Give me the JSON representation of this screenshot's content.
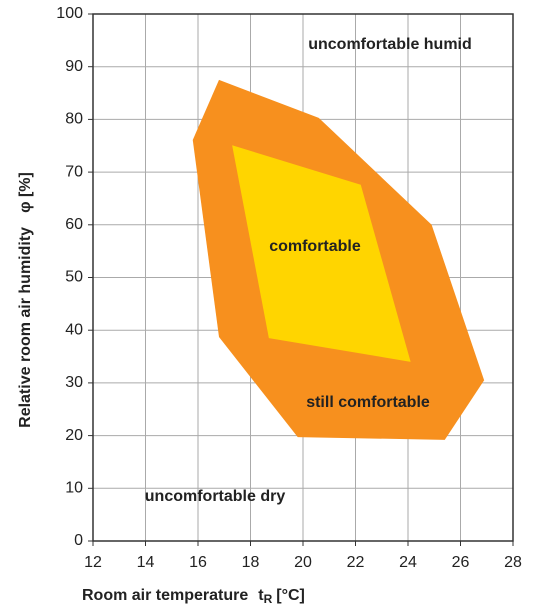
{
  "chart_data": {
    "type": "polygon",
    "xlim": [
      12,
      28
    ],
    "xticks": [
      12,
      14,
      16,
      18,
      20,
      22,
      24,
      26,
      28
    ],
    "ylim": [
      0,
      100
    ],
    "yticks": [
      0,
      10,
      20,
      30,
      40,
      50,
      60,
      70,
      80,
      90,
      100
    ],
    "grid": true,
    "xlabel": {
      "text": "Room air temperature",
      "symbol": "t",
      "subscript": "R",
      "unit": "[°C]"
    },
    "ylabel": {
      "text": "Relative room air humidity",
      "symbol": "φ [%]"
    },
    "series": [
      {
        "name": "still comfortable",
        "color": "#f7901e",
        "x": [
          16.8,
          20.6,
          24.9,
          26.9,
          25.4,
          19.8,
          16.8,
          15.8
        ],
        "values": [
          87.5,
          80.3,
          60,
          30.5,
          19.2,
          19.7,
          38.7,
          76.1
        ]
      },
      {
        "name": "comfortable",
        "color": "#ffd500",
        "x": [
          17.3,
          22.2,
          24.1,
          18.7
        ],
        "values": [
          75.1,
          67.6,
          34,
          38.5
        ]
      }
    ],
    "annotations": [
      "uncomfortable humid",
      "uncomfortable dry"
    ]
  }
}
